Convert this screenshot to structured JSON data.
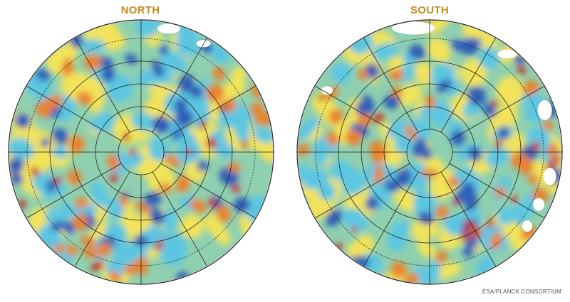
{
  "maps": [
    {
      "title": "NORTH"
    },
    {
      "title": "SOUTH"
    }
  ],
  "credit": "ESA/PLANCK CONSORTIUM",
  "colors": {
    "title": "#c98a1e",
    "background_field": "#8fd0b0",
    "cold_spot": "#2f5fb8",
    "cool_spot": "#5cc6e2",
    "warm_spot": "#f2e35a",
    "hot_spot": "#e8832e",
    "hottest_spot": "#c8281c",
    "mask": "#ffffff",
    "graticule": "#222222"
  },
  "map_style": "Mollweide-like polar projection of cosmic microwave background temperature anisotropies with graticule"
}
